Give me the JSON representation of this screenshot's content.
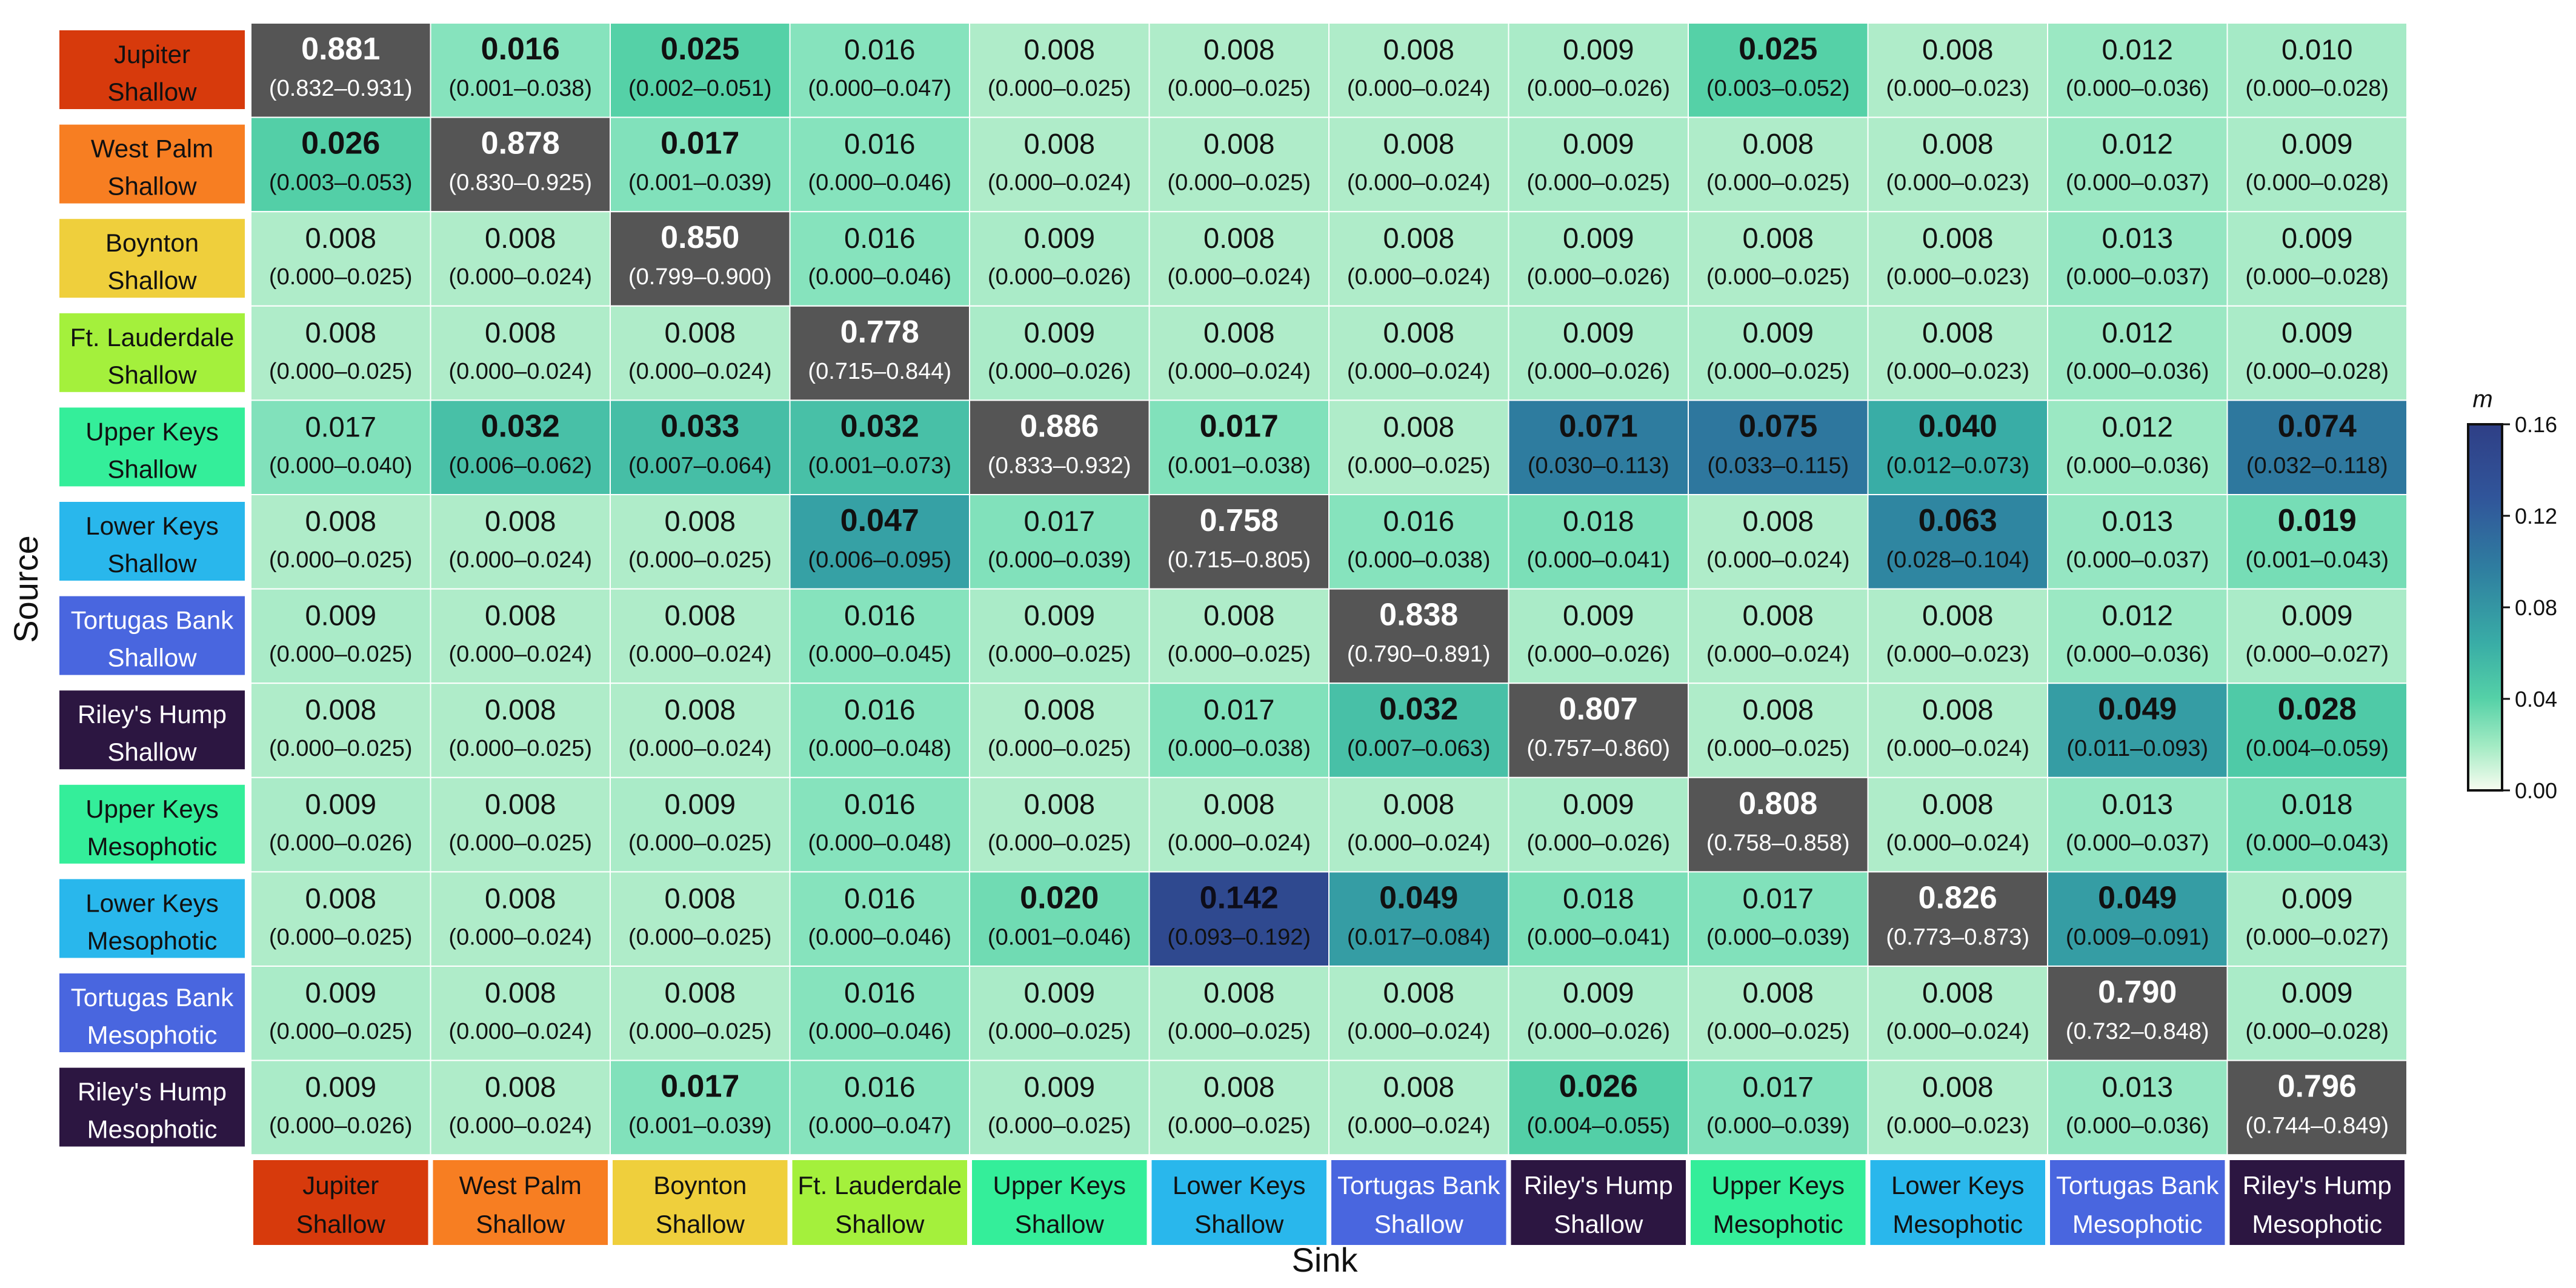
{
  "chart_data": {
    "type": "heatmap",
    "title": "",
    "xlabel": "Sink",
    "ylabel": "Source",
    "colorbar": {
      "label": "m",
      "min": 0.0,
      "max": 0.16,
      "ticks": [
        "0.16",
        "0.12",
        "0.08",
        "0.04",
        "0.00"
      ],
      "cap_note": "diagonal cells drawn in dark grey (values exceed scale)"
    },
    "categories": [
      {
        "line1": "Jupiter",
        "line2": "Shallow",
        "color": "#d73a0c",
        "text": "#111111"
      },
      {
        "line1": "West Palm",
        "line2": "Shallow",
        "color": "#f77e22",
        "text": "#111111"
      },
      {
        "line1": "Boynton",
        "line2": "Shallow",
        "color": "#efcf3c",
        "text": "#111111"
      },
      {
        "line1": "Ft. Lauderdale",
        "line2": "Shallow",
        "color": "#a4f03c",
        "text": "#111111"
      },
      {
        "line1": "Upper Keys",
        "line2": "Shallow",
        "color": "#34ee9a",
        "text": "#111111"
      },
      {
        "line1": "Lower Keys",
        "line2": "Shallow",
        "color": "#29b7ec",
        "text": "#111111"
      },
      {
        "line1": "Tortugas Bank",
        "line2": "Shallow",
        "color": "#4966df",
        "text": "#ffffff"
      },
      {
        "line1": "Riley's Hump",
        "line2": "Shallow",
        "color": "#2c1641",
        "text": "#ffffff"
      },
      {
        "line1": "Upper Keys",
        "line2": "Mesophotic",
        "color": "#34ee9a",
        "text": "#111111"
      },
      {
        "line1": "Lower Keys",
        "line2": "Mesophotic",
        "color": "#29b7ec",
        "text": "#111111"
      },
      {
        "line1": "Tortugas Bank",
        "line2": "Mesophotic",
        "color": "#4966df",
        "text": "#ffffff"
      },
      {
        "line1": "Riley's Hump",
        "line2": "Mesophotic",
        "color": "#2c1641",
        "text": "#ffffff"
      }
    ],
    "matrix": [
      [
        {
          "v": "0.881",
          "ci": "(0.832–0.931)",
          "b": true
        },
        {
          "v": "0.016",
          "ci": "(0.001–0.038)",
          "b": true
        },
        {
          "v": "0.025",
          "ci": "(0.002–0.051)",
          "b": true
        },
        {
          "v": "0.016",
          "ci": "(0.000–0.047)",
          "b": false
        },
        {
          "v": "0.008",
          "ci": "(0.000–0.025)",
          "b": false
        },
        {
          "v": "0.008",
          "ci": "(0.000–0.025)",
          "b": false
        },
        {
          "v": "0.008",
          "ci": "(0.000–0.024)",
          "b": false
        },
        {
          "v": "0.009",
          "ci": "(0.000–0.026)",
          "b": false
        },
        {
          "v": "0.025",
          "ci": "(0.003–0.052)",
          "b": true
        },
        {
          "v": "0.008",
          "ci": "(0.000–0.023)",
          "b": false
        },
        {
          "v": "0.012",
          "ci": "(0.000–0.036)",
          "b": false
        },
        {
          "v": "0.010",
          "ci": "(0.000–0.028)",
          "b": false
        }
      ],
      [
        {
          "v": "0.026",
          "ci": "(0.003–0.053)",
          "b": true
        },
        {
          "v": "0.878",
          "ci": "(0.830–0.925)",
          "b": true
        },
        {
          "v": "0.017",
          "ci": "(0.001–0.039)",
          "b": true
        },
        {
          "v": "0.016",
          "ci": "(0.000–0.046)",
          "b": false
        },
        {
          "v": "0.008",
          "ci": "(0.000–0.024)",
          "b": false
        },
        {
          "v": "0.008",
          "ci": "(0.000–0.025)",
          "b": false
        },
        {
          "v": "0.008",
          "ci": "(0.000–0.024)",
          "b": false
        },
        {
          "v": "0.009",
          "ci": "(0.000–0.025)",
          "b": false
        },
        {
          "v": "0.008",
          "ci": "(0.000–0.025)",
          "b": false
        },
        {
          "v": "0.008",
          "ci": "(0.000–0.023)",
          "b": false
        },
        {
          "v": "0.012",
          "ci": "(0.000–0.037)",
          "b": false
        },
        {
          "v": "0.009",
          "ci": "(0.000–0.028)",
          "b": false
        }
      ],
      [
        {
          "v": "0.008",
          "ci": "(0.000–0.025)",
          "b": false
        },
        {
          "v": "0.008",
          "ci": "(0.000–0.024)",
          "b": false
        },
        {
          "v": "0.850",
          "ci": "(0.799–0.900)",
          "b": true
        },
        {
          "v": "0.016",
          "ci": "(0.000–0.046)",
          "b": false
        },
        {
          "v": "0.009",
          "ci": "(0.000–0.026)",
          "b": false
        },
        {
          "v": "0.008",
          "ci": "(0.000–0.024)",
          "b": false
        },
        {
          "v": "0.008",
          "ci": "(0.000–0.024)",
          "b": false
        },
        {
          "v": "0.009",
          "ci": "(0.000–0.026)",
          "b": false
        },
        {
          "v": "0.008",
          "ci": "(0.000–0.025)",
          "b": false
        },
        {
          "v": "0.008",
          "ci": "(0.000–0.023)",
          "b": false
        },
        {
          "v": "0.013",
          "ci": "(0.000–0.037)",
          "b": false
        },
        {
          "v": "0.009",
          "ci": "(0.000–0.028)",
          "b": false
        }
      ],
      [
        {
          "v": "0.008",
          "ci": "(0.000–0.025)",
          "b": false
        },
        {
          "v": "0.008",
          "ci": "(0.000–0.024)",
          "b": false
        },
        {
          "v": "0.008",
          "ci": "(0.000–0.024)",
          "b": false
        },
        {
          "v": "0.778",
          "ci": "(0.715–0.844)",
          "b": true
        },
        {
          "v": "0.009",
          "ci": "(0.000–0.026)",
          "b": false
        },
        {
          "v": "0.008",
          "ci": "(0.000–0.024)",
          "b": false
        },
        {
          "v": "0.008",
          "ci": "(0.000–0.024)",
          "b": false
        },
        {
          "v": "0.009",
          "ci": "(0.000–0.026)",
          "b": false
        },
        {
          "v": "0.009",
          "ci": "(0.000–0.025)",
          "b": false
        },
        {
          "v": "0.008",
          "ci": "(0.000–0.023)",
          "b": false
        },
        {
          "v": "0.012",
          "ci": "(0.000–0.036)",
          "b": false
        },
        {
          "v": "0.009",
          "ci": "(0.000–0.028)",
          "b": false
        }
      ],
      [
        {
          "v": "0.017",
          "ci": "(0.000–0.040)",
          "b": false
        },
        {
          "v": "0.032",
          "ci": "(0.006–0.062)",
          "b": true
        },
        {
          "v": "0.033",
          "ci": "(0.007–0.064)",
          "b": true
        },
        {
          "v": "0.032",
          "ci": "(0.001–0.073)",
          "b": true
        },
        {
          "v": "0.886",
          "ci": "(0.833–0.932)",
          "b": true
        },
        {
          "v": "0.017",
          "ci": "(0.001–0.038)",
          "b": true
        },
        {
          "v": "0.008",
          "ci": "(0.000–0.025)",
          "b": false
        },
        {
          "v": "0.071",
          "ci": "(0.030–0.113)",
          "b": true
        },
        {
          "v": "0.075",
          "ci": "(0.033–0.115)",
          "b": true
        },
        {
          "v": "0.040",
          "ci": "(0.012–0.073)",
          "b": true
        },
        {
          "v": "0.012",
          "ci": "(0.000–0.036)",
          "b": false
        },
        {
          "v": "0.074",
          "ci": "(0.032–0.118)",
          "b": true
        }
      ],
      [
        {
          "v": "0.008",
          "ci": "(0.000–0.025)",
          "b": false
        },
        {
          "v": "0.008",
          "ci": "(0.000–0.024)",
          "b": false
        },
        {
          "v": "0.008",
          "ci": "(0.000–0.025)",
          "b": false
        },
        {
          "v": "0.047",
          "ci": "(0.006–0.095)",
          "b": true
        },
        {
          "v": "0.017",
          "ci": "(0.000–0.039)",
          "b": false
        },
        {
          "v": "0.758",
          "ci": "(0.715–0.805)",
          "b": true
        },
        {
          "v": "0.016",
          "ci": "(0.000–0.038)",
          "b": false
        },
        {
          "v": "0.018",
          "ci": "(0.000–0.041)",
          "b": false
        },
        {
          "v": "0.008",
          "ci": "(0.000–0.024)",
          "b": false
        },
        {
          "v": "0.063",
          "ci": "(0.028–0.104)",
          "b": true
        },
        {
          "v": "0.013",
          "ci": "(0.000–0.037)",
          "b": false
        },
        {
          "v": "0.019",
          "ci": "(0.001–0.043)",
          "b": true
        }
      ],
      [
        {
          "v": "0.009",
          "ci": "(0.000–0.025)",
          "b": false
        },
        {
          "v": "0.008",
          "ci": "(0.000–0.024)",
          "b": false
        },
        {
          "v": "0.008",
          "ci": "(0.000–0.024)",
          "b": false
        },
        {
          "v": "0.016",
          "ci": "(0.000–0.045)",
          "b": false
        },
        {
          "v": "0.009",
          "ci": "(0.000–0.025)",
          "b": false
        },
        {
          "v": "0.008",
          "ci": "(0.000–0.025)",
          "b": false
        },
        {
          "v": "0.838",
          "ci": "(0.790–0.891)",
          "b": true
        },
        {
          "v": "0.009",
          "ci": "(0.000–0.026)",
          "b": false
        },
        {
          "v": "0.008",
          "ci": "(0.000–0.024)",
          "b": false
        },
        {
          "v": "0.008",
          "ci": "(0.000–0.023)",
          "b": false
        },
        {
          "v": "0.012",
          "ci": "(0.000–0.036)",
          "b": false
        },
        {
          "v": "0.009",
          "ci": "(0.000–0.027)",
          "b": false
        }
      ],
      [
        {
          "v": "0.008",
          "ci": "(0.000–0.025)",
          "b": false
        },
        {
          "v": "0.008",
          "ci": "(0.000–0.025)",
          "b": false
        },
        {
          "v": "0.008",
          "ci": "(0.000–0.024)",
          "b": false
        },
        {
          "v": "0.016",
          "ci": "(0.000–0.048)",
          "b": false
        },
        {
          "v": "0.008",
          "ci": "(0.000–0.025)",
          "b": false
        },
        {
          "v": "0.017",
          "ci": "(0.000–0.038)",
          "b": false
        },
        {
          "v": "0.032",
          "ci": "(0.007–0.063)",
          "b": true
        },
        {
          "v": "0.807",
          "ci": "(0.757–0.860)",
          "b": true
        },
        {
          "v": "0.008",
          "ci": "(0.000–0.025)",
          "b": false
        },
        {
          "v": "0.008",
          "ci": "(0.000–0.024)",
          "b": false
        },
        {
          "v": "0.049",
          "ci": "(0.011–0.093)",
          "b": true
        },
        {
          "v": "0.028",
          "ci": "(0.004–0.059)",
          "b": true
        }
      ],
      [
        {
          "v": "0.009",
          "ci": "(0.000–0.026)",
          "b": false
        },
        {
          "v": "0.008",
          "ci": "(0.000–0.025)",
          "b": false
        },
        {
          "v": "0.009",
          "ci": "(0.000–0.025)",
          "b": false
        },
        {
          "v": "0.016",
          "ci": "(0.000–0.048)",
          "b": false
        },
        {
          "v": "0.008",
          "ci": "(0.000–0.025)",
          "b": false
        },
        {
          "v": "0.008",
          "ci": "(0.000–0.024)",
          "b": false
        },
        {
          "v": "0.008",
          "ci": "(0.000–0.024)",
          "b": false
        },
        {
          "v": "0.009",
          "ci": "(0.000–0.026)",
          "b": false
        },
        {
          "v": "0.808",
          "ci": "(0.758–0.858)",
          "b": true
        },
        {
          "v": "0.008",
          "ci": "(0.000–0.024)",
          "b": false
        },
        {
          "v": "0.013",
          "ci": "(0.000–0.037)",
          "b": false
        },
        {
          "v": "0.018",
          "ci": "(0.000–0.043)",
          "b": false
        }
      ],
      [
        {
          "v": "0.008",
          "ci": "(0.000–0.025)",
          "b": false
        },
        {
          "v": "0.008",
          "ci": "(0.000–0.024)",
          "b": false
        },
        {
          "v": "0.008",
          "ci": "(0.000–0.025)",
          "b": false
        },
        {
          "v": "0.016",
          "ci": "(0.000–0.046)",
          "b": false
        },
        {
          "v": "0.020",
          "ci": "(0.001–0.046)",
          "b": true
        },
        {
          "v": "0.142",
          "ci": "(0.093–0.192)",
          "b": true
        },
        {
          "v": "0.049",
          "ci": "(0.017–0.084)",
          "b": true
        },
        {
          "v": "0.018",
          "ci": "(0.000–0.041)",
          "b": false
        },
        {
          "v": "0.017",
          "ci": "(0.000–0.039)",
          "b": false
        },
        {
          "v": "0.826",
          "ci": "(0.773–0.873)",
          "b": true
        },
        {
          "v": "0.049",
          "ci": "(0.009–0.091)",
          "b": true
        },
        {
          "v": "0.009",
          "ci": "(0.000–0.027)",
          "b": false
        }
      ],
      [
        {
          "v": "0.009",
          "ci": "(0.000–0.025)",
          "b": false
        },
        {
          "v": "0.008",
          "ci": "(0.000–0.024)",
          "b": false
        },
        {
          "v": "0.008",
          "ci": "(0.000–0.025)",
          "b": false
        },
        {
          "v": "0.016",
          "ci": "(0.000–0.046)",
          "b": false
        },
        {
          "v": "0.009",
          "ci": "(0.000–0.025)",
          "b": false
        },
        {
          "v": "0.008",
          "ci": "(0.000–0.025)",
          "b": false
        },
        {
          "v": "0.008",
          "ci": "(0.000–0.024)",
          "b": false
        },
        {
          "v": "0.009",
          "ci": "(0.000–0.026)",
          "b": false
        },
        {
          "v": "0.008",
          "ci": "(0.000–0.025)",
          "b": false
        },
        {
          "v": "0.008",
          "ci": "(0.000–0.024)",
          "b": false
        },
        {
          "v": "0.790",
          "ci": "(0.732–0.848)",
          "b": true
        },
        {
          "v": "0.009",
          "ci": "(0.000–0.028)",
          "b": false
        }
      ],
      [
        {
          "v": "0.009",
          "ci": "(0.000–0.026)",
          "b": false
        },
        {
          "v": "0.008",
          "ci": "(0.000–0.024)",
          "b": false
        },
        {
          "v": "0.017",
          "ci": "(0.001–0.039)",
          "b": true
        },
        {
          "v": "0.016",
          "ci": "(0.000–0.047)",
          "b": false
        },
        {
          "v": "0.009",
          "ci": "(0.000–0.025)",
          "b": false
        },
        {
          "v": "0.008",
          "ci": "(0.000–0.025)",
          "b": false
        },
        {
          "v": "0.008",
          "ci": "(0.000–0.024)",
          "b": false
        },
        {
          "v": "0.026",
          "ci": "(0.004–0.055)",
          "b": true
        },
        {
          "v": "0.017",
          "ci": "(0.000–0.039)",
          "b": false
        },
        {
          "v": "0.008",
          "ci": "(0.000–0.023)",
          "b": false
        },
        {
          "v": "0.013",
          "ci": "(0.000–0.036)",
          "b": false
        },
        {
          "v": "0.796",
          "ci": "(0.744–0.849)",
          "b": true
        }
      ]
    ]
  }
}
